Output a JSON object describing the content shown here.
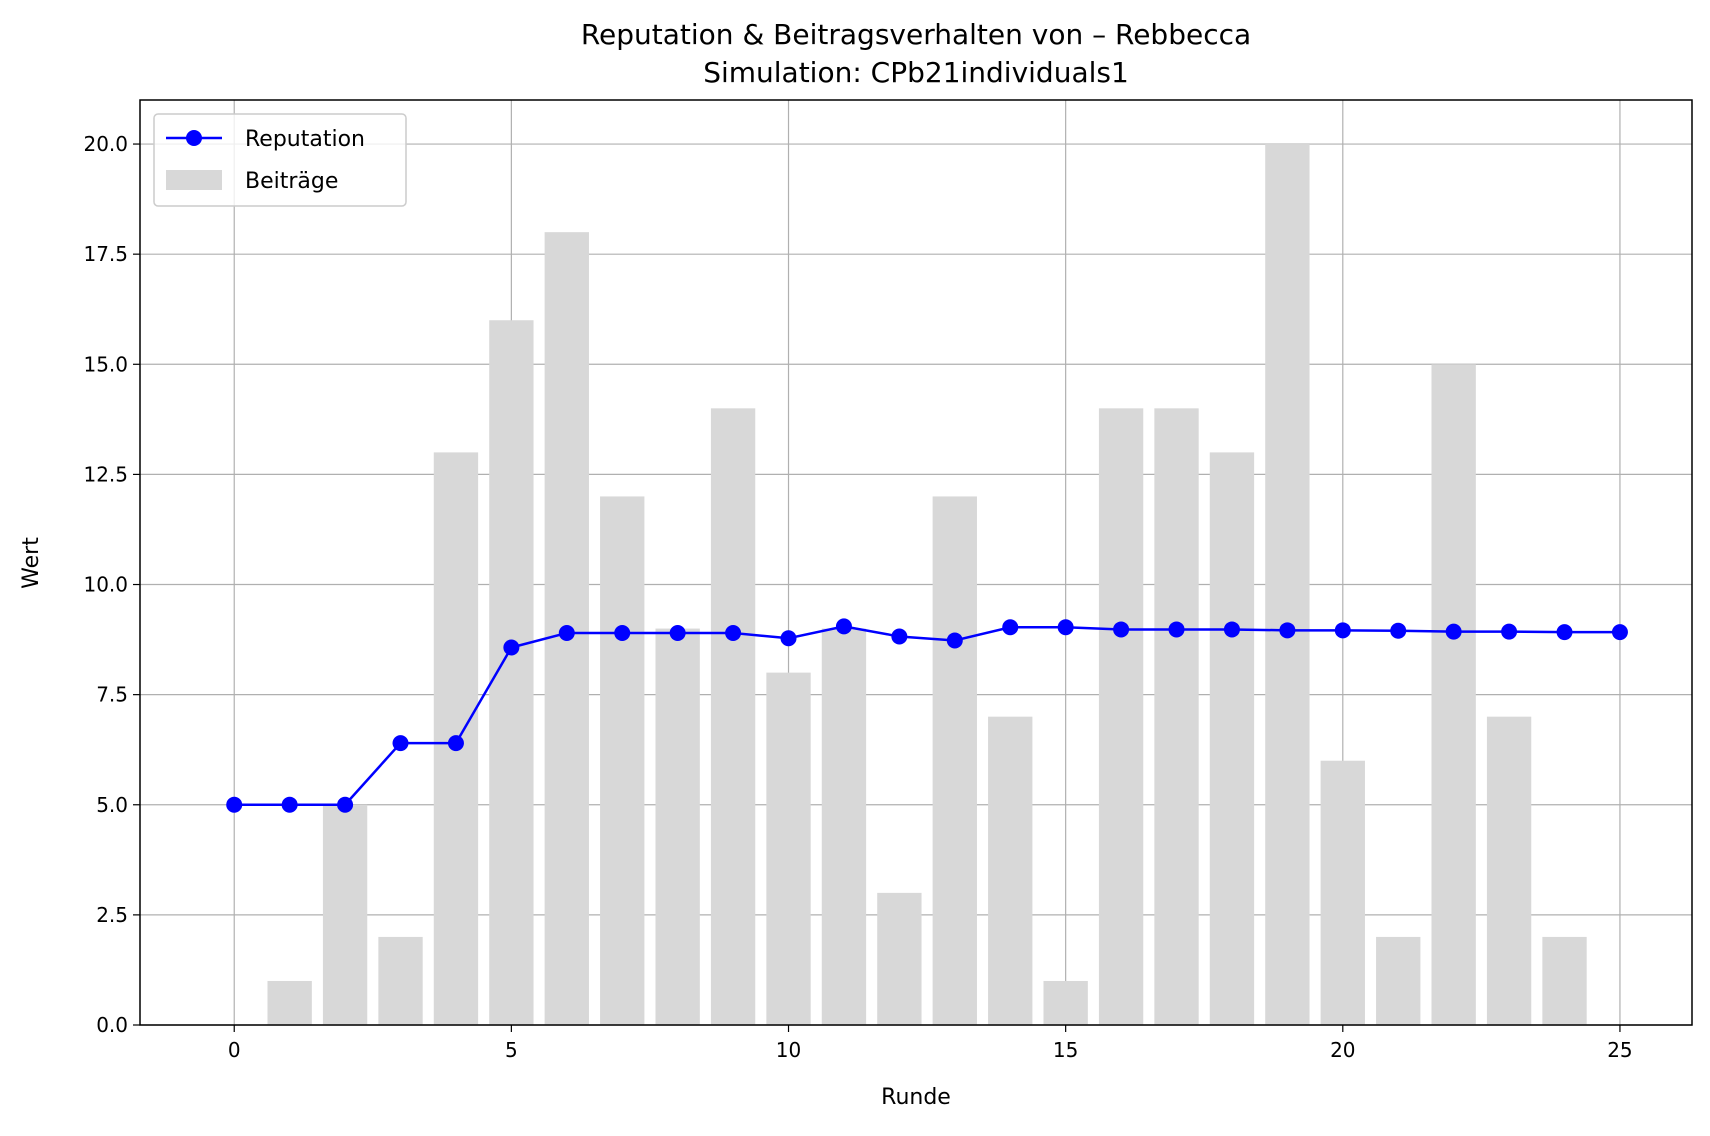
{
  "chart_data": {
    "type": "bar",
    "title": "Reputation & Beitragsverhalten von – Rebbecca",
    "subtitle": "Simulation: CPb21individuals1",
    "xlabel": "Runde",
    "ylabel": "Wert",
    "xlim": [
      -1.7,
      26.3
    ],
    "ylim": [
      0,
      21
    ],
    "xticks": [
      0,
      5,
      10,
      15,
      20,
      25
    ],
    "yticks": [
      0.0,
      2.5,
      5.0,
      7.5,
      10.0,
      12.5,
      15.0,
      17.5,
      20.0
    ],
    "xtick_labels": [
      "0",
      "5",
      "10",
      "15",
      "20",
      "25"
    ],
    "ytick_labels": [
      "0.0",
      "2.5",
      "5.0",
      "7.5",
      "10.0",
      "12.5",
      "15.0",
      "17.5",
      "20.0"
    ],
    "grid": true,
    "legend_position": "top-left",
    "series": [
      {
        "name": "Beiträge",
        "type": "bar",
        "color": "#d8d8d8",
        "x": [
          1,
          2,
          3,
          4,
          5,
          6,
          7,
          8,
          9,
          10,
          11,
          12,
          13,
          14,
          15,
          16,
          17,
          18,
          19,
          20,
          21,
          22,
          23,
          24
        ],
        "values": [
          1,
          5,
          2,
          13,
          16,
          18,
          12,
          9,
          14,
          8,
          9,
          3,
          12,
          7,
          1,
          14,
          14,
          13,
          20,
          6,
          2,
          15,
          7,
          2
        ]
      },
      {
        "name": "Reputation",
        "type": "line",
        "color": "#0000ff",
        "x": [
          0,
          1,
          2,
          3,
          4,
          5,
          6,
          7,
          8,
          9,
          10,
          11,
          12,
          13,
          14,
          15,
          16,
          17,
          18,
          19,
          20,
          21,
          22,
          23,
          24,
          25
        ],
        "values": [
          5.0,
          5.0,
          5.0,
          6.4,
          6.4,
          8.57,
          8.9,
          8.9,
          8.9,
          8.9,
          8.78,
          9.05,
          8.82,
          8.73,
          9.03,
          9.03,
          8.98,
          8.98,
          8.98,
          8.96,
          8.96,
          8.95,
          8.93,
          8.93,
          8.92,
          8.92
        ]
      }
    ]
  }
}
